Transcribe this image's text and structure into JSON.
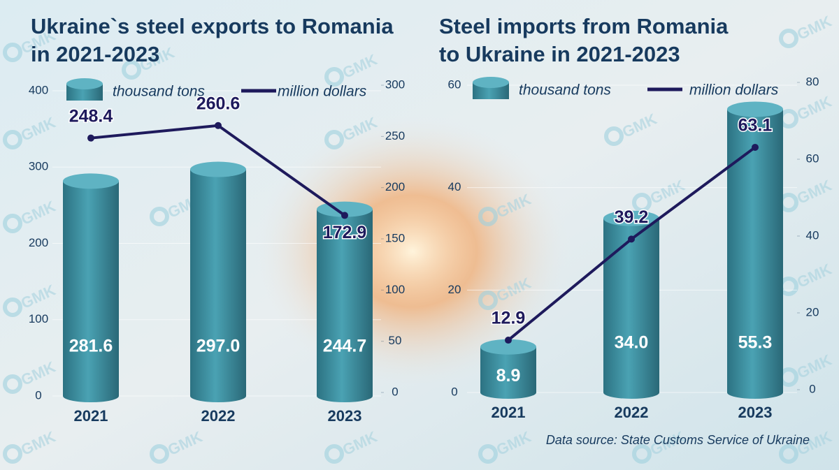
{
  "chart_data": [
    {
      "type": "bar",
      "title": "Ukraine`s steel exports to Romania in 2021-2023",
      "categories": [
        "2021",
        "2022",
        "2023"
      ],
      "series": [
        {
          "name": "thousand tons",
          "color": "#3b8f9f",
          "values": [
            281.6,
            297.0,
            244.7
          ],
          "value_labels": [
            "281.6",
            "297.0",
            "244.7"
          ]
        },
        {
          "name": "million dollars",
          "color": "#1e1a5c",
          "values": [
            248.4,
            260.6,
            172.9
          ],
          "axis": "y2"
        }
      ],
      "ylim": [
        0,
        400
      ],
      "yticks": [
        0,
        100,
        200,
        300,
        400
      ],
      "y2lim": [
        0,
        300
      ],
      "y2ticks": [
        0,
        50,
        100,
        150,
        200,
        250,
        300
      ],
      "grid": true
    },
    {
      "type": "bar",
      "title": "Steel imports from Romania to Ukraine in 2021-2023",
      "categories": [
        "2021",
        "2022",
        "2023"
      ],
      "series": [
        {
          "name": "thousand tons",
          "color": "#3b8f9f",
          "values": [
            8.9,
            34.0,
            55.3
          ],
          "value_labels": [
            "8.9",
            "34.0",
            "55.3"
          ]
        },
        {
          "name": "million dollars",
          "color": "#1e1a5c",
          "values": [
            12.9,
            39.2,
            63.1
          ],
          "axis": "y2"
        }
      ],
      "ylim": [
        0,
        60
      ],
      "yticks": [
        0,
        20,
        40,
        60
      ],
      "y2lim": [
        0,
        80
      ],
      "y2ticks": [
        0,
        20,
        40,
        60,
        80
      ],
      "grid": true
    }
  ],
  "source": "Data source: State Customs Service of Ukraine",
  "watermark": "GMK"
}
